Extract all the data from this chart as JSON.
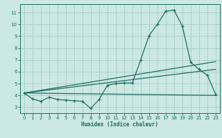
{
  "xlabel": "Humidex (Indice chaleur)",
  "bg_color": "#cce8e4",
  "grid_color": "#aacfca",
  "line_color": "#1a6b61",
  "xlim": [
    -0.5,
    23.5
  ],
  "ylim": [
    2.5,
    11.7
  ],
  "xticks": [
    0,
    1,
    2,
    3,
    4,
    5,
    6,
    7,
    8,
    9,
    10,
    11,
    12,
    13,
    14,
    15,
    16,
    17,
    18,
    19,
    20,
    21,
    22,
    23
  ],
  "yticks": [
    3,
    4,
    5,
    6,
    7,
    8,
    9,
    10,
    11
  ],
  "series1_x": [
    0,
    1,
    2,
    3,
    4,
    5,
    6,
    7,
    8,
    9,
    10,
    11,
    12,
    13,
    14,
    15,
    16,
    17,
    18,
    19,
    20,
    21,
    22,
    23
  ],
  "series1_y": [
    4.2,
    3.7,
    3.5,
    3.85,
    3.65,
    3.6,
    3.55,
    3.5,
    2.9,
    3.65,
    4.85,
    5.0,
    5.05,
    5.05,
    7.0,
    9.05,
    10.0,
    11.1,
    11.2,
    9.85,
    6.8,
    6.2,
    5.7,
    4.1
  ],
  "series2_x": [
    0,
    23
  ],
  "series2_y": [
    4.2,
    6.85
  ],
  "series3_x": [
    0,
    23
  ],
  "series3_y": [
    4.2,
    6.2
  ],
  "series4_x": [
    0,
    23
  ],
  "series4_y": [
    4.2,
    4.0
  ]
}
